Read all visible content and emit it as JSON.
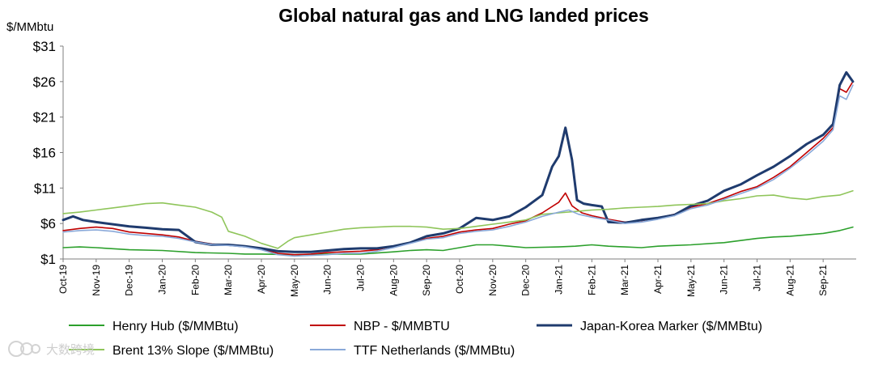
{
  "chart_data": {
    "type": "line",
    "title": "Global natural gas and LNG landed prices",
    "ylabel": "$/MMbtu",
    "xlabel": "",
    "ylim": [
      1,
      31
    ],
    "yticks": [
      {
        "value": 1,
        "label": "$1"
      },
      {
        "value": 6,
        "label": "$6"
      },
      {
        "value": 11,
        "label": "$11"
      },
      {
        "value": 16,
        "label": "$16"
      },
      {
        "value": 21,
        "label": "$21"
      },
      {
        "value": 26,
        "label": "$26"
      },
      {
        "value": 31,
        "label": "$31"
      }
    ],
    "xlim": [
      0,
      24
    ],
    "xticks": [
      {
        "value": 0,
        "label": "Oct-19"
      },
      {
        "value": 1,
        "label": "Nov-19"
      },
      {
        "value": 2,
        "label": "Dec-19"
      },
      {
        "value": 3,
        "label": "Jan-20"
      },
      {
        "value": 4,
        "label": "Feb-20"
      },
      {
        "value": 5,
        "label": "Mar-20"
      },
      {
        "value": 6,
        "label": "Apr-20"
      },
      {
        "value": 7,
        "label": "May-20"
      },
      {
        "value": 8,
        "label": "Jun-20"
      },
      {
        "value": 9,
        "label": "Jul-20"
      },
      {
        "value": 10,
        "label": "Aug-20"
      },
      {
        "value": 11,
        "label": "Sep-20"
      },
      {
        "value": 12,
        "label": "Oct-20"
      },
      {
        "value": 13,
        "label": "Nov-20"
      },
      {
        "value": 14,
        "label": "Dec-20"
      },
      {
        "value": 15,
        "label": "Jan-21"
      },
      {
        "value": 16,
        "label": "Feb-21"
      },
      {
        "value": 17,
        "label": "Mar-21"
      },
      {
        "value": 18,
        "label": "Apr-21"
      },
      {
        "value": 19,
        "label": "May-21"
      },
      {
        "value": 20,
        "label": "Jun-21"
      },
      {
        "value": 21,
        "label": "Jul-21"
      },
      {
        "value": 22,
        "label": "Aug-21"
      },
      {
        "value": 23,
        "label": "Sep-21"
      }
    ],
    "legend_position": "bottom",
    "series": [
      {
        "name": "Henry Hub ($/MMBtu)",
        "color": "#2ca02c",
        "width": 1.6,
        "legend_row": 0,
        "legend_col": 0,
        "points": [
          [
            0,
            2.6
          ],
          [
            0.5,
            2.7
          ],
          [
            1,
            2.6
          ],
          [
            2,
            2.3
          ],
          [
            3,
            2.2
          ],
          [
            4,
            1.9
          ],
          [
            5,
            1.8
          ],
          [
            5.5,
            1.7
          ],
          [
            6,
            1.7
          ],
          [
            7,
            1.6
          ],
          [
            8,
            1.7
          ],
          [
            9,
            1.7
          ],
          [
            10,
            2.0
          ],
          [
            10.5,
            2.2
          ],
          [
            11,
            2.3
          ],
          [
            11.5,
            2.2
          ],
          [
            12,
            2.6
          ],
          [
            12.5,
            3.0
          ],
          [
            13,
            3.0
          ],
          [
            13.5,
            2.8
          ],
          [
            14,
            2.6
          ],
          [
            15,
            2.7
          ],
          [
            15.5,
            2.8
          ],
          [
            16,
            3.0
          ],
          [
            16.5,
            2.8
          ],
          [
            17,
            2.7
          ],
          [
            17.5,
            2.6
          ],
          [
            18,
            2.8
          ],
          [
            18.5,
            2.9
          ],
          [
            19,
            3.0
          ],
          [
            20,
            3.3
          ],
          [
            20.5,
            3.6
          ],
          [
            21,
            3.9
          ],
          [
            21.5,
            4.1
          ],
          [
            22,
            4.2
          ],
          [
            22.5,
            4.4
          ],
          [
            23,
            4.6
          ],
          [
            23.5,
            5.0
          ],
          [
            23.9,
            5.5
          ]
        ]
      },
      {
        "name": "NBP - $/MMBTU",
        "color": "#c00000",
        "width": 1.6,
        "legend_row": 0,
        "legend_col": 1,
        "points": [
          [
            0,
            5.0
          ],
          [
            0.5,
            5.3
          ],
          [
            1,
            5.5
          ],
          [
            1.5,
            5.3
          ],
          [
            2,
            4.8
          ],
          [
            2.5,
            4.6
          ],
          [
            3,
            4.4
          ],
          [
            3.5,
            4.1
          ],
          [
            4,
            3.5
          ],
          [
            4.5,
            3.1
          ],
          [
            5,
            3.0
          ],
          [
            5.5,
            2.8
          ],
          [
            6,
            2.4
          ],
          [
            6.5,
            1.8
          ],
          [
            7,
            1.6
          ],
          [
            7.5,
            1.7
          ],
          [
            8,
            1.9
          ],
          [
            8.5,
            2.0
          ],
          [
            9,
            2.1
          ],
          [
            9.5,
            2.3
          ],
          [
            10,
            2.8
          ],
          [
            10.5,
            3.3
          ],
          [
            11,
            3.9
          ],
          [
            11.5,
            4.2
          ],
          [
            12,
            4.8
          ],
          [
            12.5,
            5.1
          ],
          [
            13,
            5.3
          ],
          [
            13.5,
            5.9
          ],
          [
            14,
            6.4
          ],
          [
            14.5,
            7.5
          ],
          [
            15,
            9.0
          ],
          [
            15.2,
            10.3
          ],
          [
            15.4,
            8.5
          ],
          [
            15.7,
            7.5
          ],
          [
            16,
            7.1
          ],
          [
            16.5,
            6.6
          ],
          [
            17,
            6.2
          ],
          [
            17.5,
            6.4
          ],
          [
            18,
            6.8
          ],
          [
            18.5,
            7.3
          ],
          [
            19,
            8.3
          ],
          [
            19.5,
            8.8
          ],
          [
            20,
            9.6
          ],
          [
            20.5,
            10.5
          ],
          [
            21,
            11.2
          ],
          [
            21.5,
            12.5
          ],
          [
            22,
            14.0
          ],
          [
            22.5,
            16.0
          ],
          [
            23,
            18.0
          ],
          [
            23.3,
            19.5
          ],
          [
            23.5,
            25.0
          ],
          [
            23.7,
            24.5
          ],
          [
            23.9,
            26.0
          ]
        ]
      },
      {
        "name": "Japan-Korea Marker ($/MMBtu)",
        "color": "#1f3b6e",
        "width": 3,
        "legend_row": 0,
        "legend_col": 2,
        "points": [
          [
            0,
            6.5
          ],
          [
            0.3,
            7.0
          ],
          [
            0.6,
            6.5
          ],
          [
            1,
            6.2
          ],
          [
            2,
            5.6
          ],
          [
            2.5,
            5.4
          ],
          [
            3,
            5.2
          ],
          [
            3.5,
            5.1
          ],
          [
            4,
            3.4
          ],
          [
            4.5,
            3.0
          ],
          [
            5,
            3.0
          ],
          [
            5.5,
            2.8
          ],
          [
            6,
            2.5
          ],
          [
            6.5,
            2.1
          ],
          [
            7,
            2.0
          ],
          [
            7.5,
            2.0
          ],
          [
            8,
            2.2
          ],
          [
            8.5,
            2.4
          ],
          [
            9,
            2.5
          ],
          [
            9.5,
            2.5
          ],
          [
            10,
            2.8
          ],
          [
            10.5,
            3.3
          ],
          [
            11,
            4.2
          ],
          [
            11.5,
            4.6
          ],
          [
            12,
            5.3
          ],
          [
            12.5,
            6.8
          ],
          [
            13,
            6.5
          ],
          [
            13.5,
            7.0
          ],
          [
            14,
            8.3
          ],
          [
            14.5,
            10.0
          ],
          [
            14.8,
            14.0
          ],
          [
            15,
            15.5
          ],
          [
            15.2,
            19.5
          ],
          [
            15.4,
            15.0
          ],
          [
            15.55,
            9.3
          ],
          [
            15.75,
            8.8
          ],
          [
            16,
            8.6
          ],
          [
            16.3,
            8.4
          ],
          [
            16.5,
            6.2
          ],
          [
            17,
            6.1
          ],
          [
            17.5,
            6.5
          ],
          [
            18,
            6.8
          ],
          [
            18.5,
            7.2
          ],
          [
            19,
            8.5
          ],
          [
            19.5,
            9.2
          ],
          [
            20,
            10.6
          ],
          [
            20.5,
            11.5
          ],
          [
            21,
            12.8
          ],
          [
            21.5,
            14.0
          ],
          [
            22,
            15.5
          ],
          [
            22.5,
            17.2
          ],
          [
            23,
            18.5
          ],
          [
            23.3,
            20.0
          ],
          [
            23.5,
            25.5
          ],
          [
            23.7,
            27.3
          ],
          [
            23.9,
            26.0
          ]
        ]
      },
      {
        "name": "Brent 13% Slope ($/MMBtu)",
        "color": "#8fc55a",
        "width": 1.6,
        "legend_row": 1,
        "legend_col": 0,
        "points": [
          [
            0,
            7.4
          ],
          [
            0.5,
            7.6
          ],
          [
            1,
            7.9
          ],
          [
            1.5,
            8.2
          ],
          [
            2,
            8.5
          ],
          [
            2.5,
            8.8
          ],
          [
            3,
            8.9
          ],
          [
            3.5,
            8.6
          ],
          [
            4,
            8.3
          ],
          [
            4.5,
            7.6
          ],
          [
            4.8,
            6.9
          ],
          [
            5,
            4.9
          ],
          [
            5.5,
            4.2
          ],
          [
            6,
            3.2
          ],
          [
            6.5,
            2.5
          ],
          [
            6.8,
            3.5
          ],
          [
            7,
            4.0
          ],
          [
            7.5,
            4.4
          ],
          [
            8,
            4.8
          ],
          [
            8.5,
            5.2
          ],
          [
            9,
            5.4
          ],
          [
            9.5,
            5.5
          ],
          [
            10,
            5.6
          ],
          [
            10.5,
            5.6
          ],
          [
            11,
            5.5
          ],
          [
            11.5,
            5.2
          ],
          [
            12,
            5.3
          ],
          [
            12.5,
            5.6
          ],
          [
            13,
            5.9
          ],
          [
            13.5,
            6.2
          ],
          [
            14,
            6.5
          ],
          [
            14.5,
            7.3
          ],
          [
            15,
            7.5
          ],
          [
            15.5,
            7.7
          ],
          [
            16,
            7.9
          ],
          [
            16.5,
            8.0
          ],
          [
            17,
            8.2
          ],
          [
            17.5,
            8.3
          ],
          [
            18,
            8.4
          ],
          [
            18.5,
            8.6
          ],
          [
            19,
            8.7
          ],
          [
            19.5,
            8.8
          ],
          [
            20,
            9.2
          ],
          [
            20.5,
            9.5
          ],
          [
            21,
            9.9
          ],
          [
            21.5,
            10.0
          ],
          [
            22,
            9.6
          ],
          [
            22.5,
            9.4
          ],
          [
            23,
            9.8
          ],
          [
            23.5,
            10.0
          ],
          [
            23.9,
            10.6
          ]
        ]
      },
      {
        "name": "TTF Netherlands ($/MMBtu)",
        "color": "#8aa9d9",
        "width": 1.6,
        "legend_row": 1,
        "legend_col": 1,
        "points": [
          [
            0,
            4.8
          ],
          [
            0.5,
            5.0
          ],
          [
            1,
            5.1
          ],
          [
            1.5,
            4.9
          ],
          [
            2,
            4.5
          ],
          [
            2.5,
            4.3
          ],
          [
            3,
            4.2
          ],
          [
            3.5,
            3.9
          ],
          [
            4,
            3.4
          ],
          [
            4.5,
            3.0
          ],
          [
            5,
            2.9
          ],
          [
            5.5,
            2.7
          ],
          [
            6,
            2.3
          ],
          [
            6.5,
            1.6
          ],
          [
            7,
            1.4
          ],
          [
            7.5,
            1.5
          ],
          [
            8,
            1.6
          ],
          [
            8.5,
            1.8
          ],
          [
            9,
            1.8
          ],
          [
            9.5,
            2.1
          ],
          [
            10,
            2.6
          ],
          [
            10.5,
            3.2
          ],
          [
            11,
            3.8
          ],
          [
            11.5,
            4.0
          ],
          [
            12,
            4.6
          ],
          [
            12.5,
            4.9
          ],
          [
            13,
            5.1
          ],
          [
            13.5,
            5.6
          ],
          [
            14,
            6.2
          ],
          [
            14.5,
            7.0
          ],
          [
            15,
            7.6
          ],
          [
            15.3,
            7.9
          ],
          [
            15.6,
            7.3
          ],
          [
            16,
            6.9
          ],
          [
            16.5,
            6.5
          ],
          [
            17,
            6.0
          ],
          [
            17.5,
            6.2
          ],
          [
            18,
            6.6
          ],
          [
            18.5,
            7.1
          ],
          [
            19,
            8.1
          ],
          [
            19.5,
            8.6
          ],
          [
            20,
            9.4
          ],
          [
            20.5,
            10.2
          ],
          [
            21,
            11.0
          ],
          [
            21.5,
            12.2
          ],
          [
            22,
            13.8
          ],
          [
            22.5,
            15.6
          ],
          [
            23,
            17.6
          ],
          [
            23.3,
            19.2
          ],
          [
            23.5,
            24.0
          ],
          [
            23.7,
            23.5
          ],
          [
            23.9,
            25.5
          ]
        ]
      }
    ]
  },
  "watermark": {
    "text": "大数跨境"
  }
}
